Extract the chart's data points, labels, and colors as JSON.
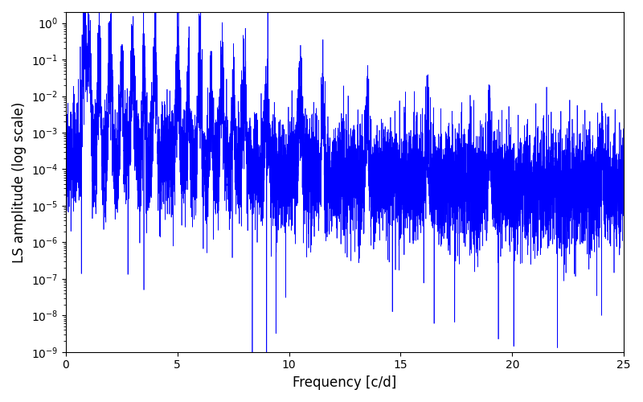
{
  "xlabel": "Frequency [c/d]",
  "ylabel": "LS amplitude (log scale)",
  "xlim": [
    0,
    25
  ],
  "ylim": [
    1e-09,
    2.0
  ],
  "line_color": "blue",
  "bg_color": "white",
  "figsize": [
    8.0,
    5.0
  ],
  "dpi": 100,
  "seed": 42,
  "n_points": 8000,
  "freq_max": 25.0
}
